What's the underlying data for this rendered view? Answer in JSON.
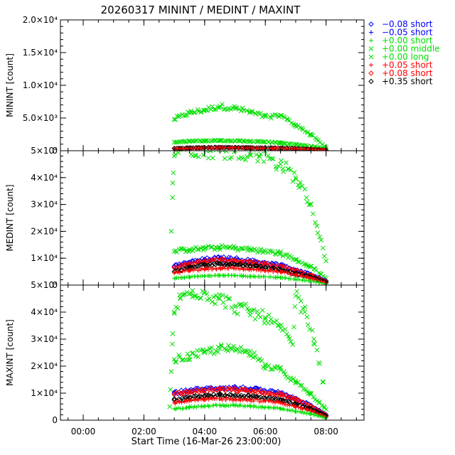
{
  "chart_data": {
    "type": "scatter",
    "title": "20260317 MININT / MEDINT / MAXINT",
    "xlabel": "Start Time (16-Mar-26 23:00:00)",
    "x_unit": "hours after 00:00",
    "xlim": [
      -0.75,
      9.25
    ],
    "x_ticks": [
      {
        "v": 0,
        "label": "00:00"
      },
      {
        "v": 2,
        "label": "02:00"
      },
      {
        "v": 4,
        "label": "04:00"
      },
      {
        "v": 6,
        "label": "06:00"
      },
      {
        "v": 8,
        "label": "08:00"
      }
    ],
    "legend": [
      {
        "label": "−0.08 short",
        "color": "#0000ff",
        "marker": "diamond"
      },
      {
        "label": "−0.05 short",
        "color": "#0000ff",
        "marker": "plus"
      },
      {
        "label": "+0.00 short",
        "color": "#00e000",
        "marker": "plus"
      },
      {
        "label": "+0.00 middle",
        "color": "#00e000",
        "marker": "cross"
      },
      {
        "label": "+0.00 long",
        "color": "#00e000",
        "marker": "cross"
      },
      {
        "label": "+0.05 short",
        "color": "#ff0000",
        "marker": "plus"
      },
      {
        "label": "+0.08 short",
        "color": "#ff0000",
        "marker": "diamond"
      },
      {
        "label": "+0.35 short",
        "color": "#000000",
        "marker": "diamond"
      }
    ],
    "panels": [
      {
        "name": "minint",
        "ylabel": "MININT [count]",
        "ylim": [
          0,
          20000
        ],
        "y_ticks": [
          {
            "v": 0,
            "label": "0"
          },
          {
            "v": 5000,
            "label": "5.0×10³"
          },
          {
            "v": 10000,
            "label": "1.0×10⁴"
          },
          {
            "v": 15000,
            "label": "1.5×10⁴"
          },
          {
            "v": 20000,
            "label": "2.0×10⁴"
          }
        ],
        "series": [
          {
            "name": "+0.00 long",
            "color": "#00e000",
            "marker": "cross",
            "x": [
              3.0,
              3.5,
              4.0,
              4.5,
              5.0,
              5.5,
              6.0,
              6.5,
              7.0,
              7.5,
              8.0
            ],
            "y": [
              4800,
              5800,
              6200,
              6800,
              6500,
              5900,
              5200,
              5400,
              3900,
              2500,
              500
            ]
          },
          {
            "name": "+0.00 middle",
            "color": "#00e000",
            "marker": "cross",
            "x": [
              3.0,
              3.5,
              4.0,
              4.5,
              5.0,
              5.5,
              6.0,
              6.5,
              7.0,
              7.5,
              8.0
            ],
            "y": [
              1300,
              1450,
              1500,
              1550,
              1500,
              1450,
              1350,
              1200,
              950,
              700,
              200
            ]
          },
          {
            "name": "+0.35 short",
            "color": "#000000",
            "marker": "diamond",
            "x": [
              3.0,
              3.5,
              4.0,
              4.5,
              5.0,
              5.5,
              6.0,
              6.5,
              7.0,
              7.5,
              8.0
            ],
            "y": [
              350,
              420,
              480,
              500,
              480,
              460,
              420,
              400,
              320,
              220,
              80
            ]
          },
          {
            "name": "+0.05 short",
            "color": "#ff0000",
            "marker": "plus",
            "x": [
              3.0,
              3.5,
              4.0,
              4.5,
              5.0,
              5.5,
              6.0,
              6.5,
              7.0,
              7.5,
              8.0
            ],
            "y": [
              300,
              350,
              420,
              450,
              430,
              400,
              380,
              350,
              280,
              200,
              70
            ]
          }
        ]
      },
      {
        "name": "medint",
        "ylabel": "MEDINT [count]",
        "ylim": [
          0,
          50000
        ],
        "y_ticks": [
          {
            "v": 0,
            "label": "0"
          },
          {
            "v": 10000,
            "label": "1×10⁴"
          },
          {
            "v": 20000,
            "label": "2×10⁴"
          },
          {
            "v": 30000,
            "label": "3×10⁴"
          },
          {
            "v": 40000,
            "label": "4×10⁴"
          },
          {
            "v": 50000,
            "label": "5×10⁴"
          }
        ],
        "series": [
          {
            "name": "+0.00 long",
            "color": "#00e000",
            "marker": "cross",
            "x": [
              2.9,
              2.95,
              3.0,
              3.2,
              3.6,
              4.2,
              5.0,
              5.8,
              6.5,
              7.0,
              7.5,
              8.0
            ],
            "y": [
              20000,
              38000,
              48000,
              52000,
              51000,
              50000,
              50000,
              48000,
              45000,
              40000,
              30000,
              9000
            ]
          },
          {
            "name": "+0.00 middle",
            "color": "#00e000",
            "marker": "cross",
            "x": [
              3.0,
              3.5,
              4.0,
              4.5,
              5.0,
              5.5,
              6.0,
              6.5,
              7.0,
              7.5,
              8.0
            ],
            "y": [
              12500,
              13300,
              13600,
              14000,
              13800,
              13200,
              12500,
              11800,
              9500,
              7000,
              2500
            ]
          },
          {
            "name": "−0.08 short",
            "color": "#0000ff",
            "marker": "diamond",
            "x": [
              3.0,
              3.5,
              4.0,
              4.5,
              5.0,
              5.5,
              6.0,
              6.5,
              7.0,
              7.5,
              8.0
            ],
            "y": [
              7000,
              8500,
              9500,
              10000,
              9700,
              9000,
              8200,
              7500,
              5500,
              4000,
              1500
            ]
          },
          {
            "name": "+0.08 short",
            "color": "#ff0000",
            "marker": "diamond",
            "x": [
              3.0,
              3.5,
              4.0,
              4.5,
              5.0,
              5.5,
              6.0,
              6.5,
              7.0,
              7.5,
              8.0
            ],
            "y": [
              6500,
              8000,
              8800,
              9200,
              9000,
              8400,
              7800,
              7000,
              5200,
              3600,
              1300
            ]
          },
          {
            "name": "+0.35 short",
            "color": "#000000",
            "marker": "diamond",
            "x": [
              3.0,
              3.5,
              4.0,
              4.5,
              5.0,
              5.5,
              6.0,
              6.5,
              7.0,
              7.5,
              8.0
            ],
            "y": [
              5000,
              6500,
              7500,
              8000,
              7700,
              7200,
              6500,
              5800,
              4300,
              3000,
              1000
            ]
          },
          {
            "name": "+0.05 short",
            "color": "#ff0000",
            "marker": "plus",
            "x": [
              3.0,
              3.5,
              4.0,
              4.5,
              5.0,
              5.5,
              6.0,
              6.5,
              7.0,
              7.5,
              8.0
            ],
            "y": [
              4500,
              5500,
              6000,
              6300,
              6200,
              5900,
              5500,
              5000,
              3800,
              2600,
              800
            ]
          },
          {
            "name": "+0.00 short",
            "color": "#00e000",
            "marker": "plus",
            "x": [
              3.0,
              3.5,
              4.0,
              4.5,
              5.0,
              5.5,
              6.0,
              6.5,
              7.0,
              7.5,
              8.0
            ],
            "y": [
              2500,
              3000,
              3400,
              3600,
              3500,
              3300,
              3100,
              2800,
              2100,
              1500,
              400
            ]
          }
        ]
      },
      {
        "name": "maxint",
        "ylabel": "MAXINT [count]",
        "ylim": [
          0,
          50000
        ],
        "y_ticks": [
          {
            "v": 0,
            "label": "0"
          },
          {
            "v": 10000,
            "label": "1×10⁴"
          },
          {
            "v": 20000,
            "label": "2×10⁴"
          },
          {
            "v": 30000,
            "label": "3×10⁴"
          },
          {
            "v": 40000,
            "label": "4×10⁴"
          },
          {
            "v": 50000,
            "label": "5×10⁴"
          }
        ],
        "series": [
          {
            "name": "+0.00 long",
            "color": "#00e000",
            "marker": "cross",
            "x": [
              2.85,
              2.9,
              2.95,
              3.0,
              3.2,
              3.6,
              4.0,
              4.5,
              5.0,
              5.5,
              6.0,
              6.5,
              6.9,
              7.0,
              7.3,
              7.6,
              7.9
            ],
            "y": [
              5000,
              18000,
              32000,
              40000,
              45000,
              48000,
              47000,
              45000,
              42000,
              40000,
              38000,
              34000,
              28000,
              46000,
              40000,
              30000,
              14000
            ]
          },
          {
            "name": "+0.00 middle",
            "color": "#00e000",
            "marker": "cross",
            "x": [
              3.0,
              3.5,
              4.0,
              4.5,
              5.0,
              5.5,
              6.0,
              6.5,
              7.0,
              7.5,
              8.0
            ],
            "y": [
              22500,
              23500,
              25000,
              26500,
              26000,
              25500,
              20000,
              18500,
              14000,
              9500,
              4000
            ]
          },
          {
            "name": "−0.08 short",
            "color": "#0000ff",
            "marker": "diamond",
            "x": [
              3.0,
              3.5,
              4.0,
              4.5,
              5.0,
              5.5,
              6.0,
              6.5,
              7.0,
              7.5,
              8.0
            ],
            "y": [
              10000,
              11000,
              11500,
              12000,
              12000,
              11500,
              10800,
              10000,
              8000,
              5500,
              2000
            ]
          },
          {
            "name": "+0.08 short",
            "color": "#ff0000",
            "marker": "diamond",
            "x": [
              3.0,
              3.5,
              4.0,
              4.5,
              5.0,
              5.5,
              6.0,
              6.5,
              7.0,
              7.5,
              8.0
            ],
            "y": [
              9500,
              10500,
              11000,
              11300,
              11200,
              10800,
              10200,
              9400,
              7500,
              5200,
              1800
            ]
          },
          {
            "name": "+0.35 short",
            "color": "#000000",
            "marker": "diamond",
            "x": [
              3.0,
              3.5,
              4.0,
              4.5,
              5.0,
              5.5,
              6.0,
              6.5,
              7.0,
              7.5,
              8.0
            ],
            "y": [
              7500,
              8300,
              8800,
              9200,
              9100,
              8700,
              8100,
              7500,
              6000,
              4200,
              1500
            ]
          },
          {
            "name": "+0.05 short",
            "color": "#ff0000",
            "marker": "plus",
            "x": [
              3.0,
              3.5,
              4.0,
              4.5,
              5.0,
              5.5,
              6.0,
              6.5,
              7.0,
              7.5,
              8.0
            ],
            "y": [
              6500,
              7200,
              7600,
              7900,
              7800,
              7500,
              7000,
              6400,
              5000,
              3500,
              1200
            ]
          },
          {
            "name": "+0.00 short",
            "color": "#00e000",
            "marker": "plus",
            "x": [
              3.0,
              3.5,
              4.0,
              4.5,
              5.0,
              5.5,
              6.0,
              6.5,
              7.0,
              7.5,
              8.0
            ],
            "y": [
              4200,
              4800,
              5200,
              5500,
              5400,
              5200,
              4800,
              4300,
              3300,
              2300,
              700
            ]
          }
        ]
      }
    ]
  }
}
